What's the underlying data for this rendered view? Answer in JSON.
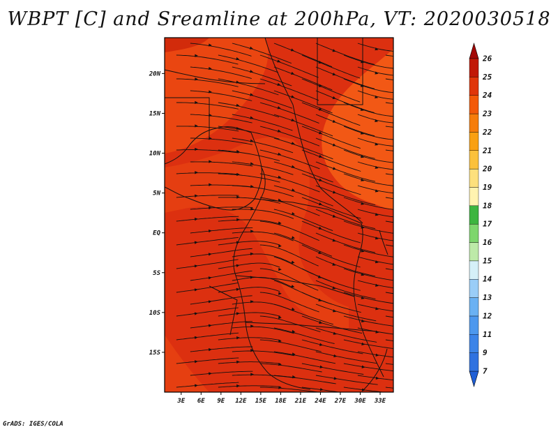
{
  "title": "WBPT [C] and Sreamline at 200hPa, VT: 2020030518",
  "credit": "GrADS: IGES/COLA",
  "axes": {
    "lat_labels": [
      "20N",
      "15N",
      "10N",
      "5N",
      "EQ",
      "5S",
      "10S",
      "15S"
    ],
    "lat_values": [
      20,
      15,
      10,
      5,
      0,
      -5,
      -10,
      -15
    ],
    "lon_labels": [
      "3E",
      "6E",
      "9E",
      "12E",
      "15E",
      "18E",
      "21E",
      "24E",
      "27E",
      "30E",
      "33E"
    ],
    "lon_values": [
      3,
      6,
      9,
      12,
      15,
      18,
      21,
      24,
      27,
      30,
      33
    ],
    "lat_range": [
      -20,
      24.5
    ],
    "lon_range": [
      0.5,
      35
    ]
  },
  "colorbar": {
    "labels": [
      "7",
      "9",
      "11",
      "12",
      "13",
      "14",
      "15",
      "16",
      "17",
      "18",
      "19",
      "20",
      "21",
      "22",
      "23",
      "24",
      "25",
      "26"
    ],
    "colors": [
      "#1f5fd6",
      "#2f72e0",
      "#3c84e8",
      "#4d98ee",
      "#6ab1f3",
      "#9acdf7",
      "#d5f0f8",
      "#bdeaa8",
      "#7ed66d",
      "#3db540",
      "#fff3b0",
      "#fde07d",
      "#fbc13c",
      "#f9a012",
      "#f67d0a",
      "#f35a08",
      "#e0360a",
      "#c11806",
      "#a30806"
    ],
    "extend": "both"
  },
  "field": {
    "base_color": "#dc3010",
    "warm_color": "#ec4a12",
    "hot_color": "#f45d16",
    "dark_color": "#c82008"
  }
}
